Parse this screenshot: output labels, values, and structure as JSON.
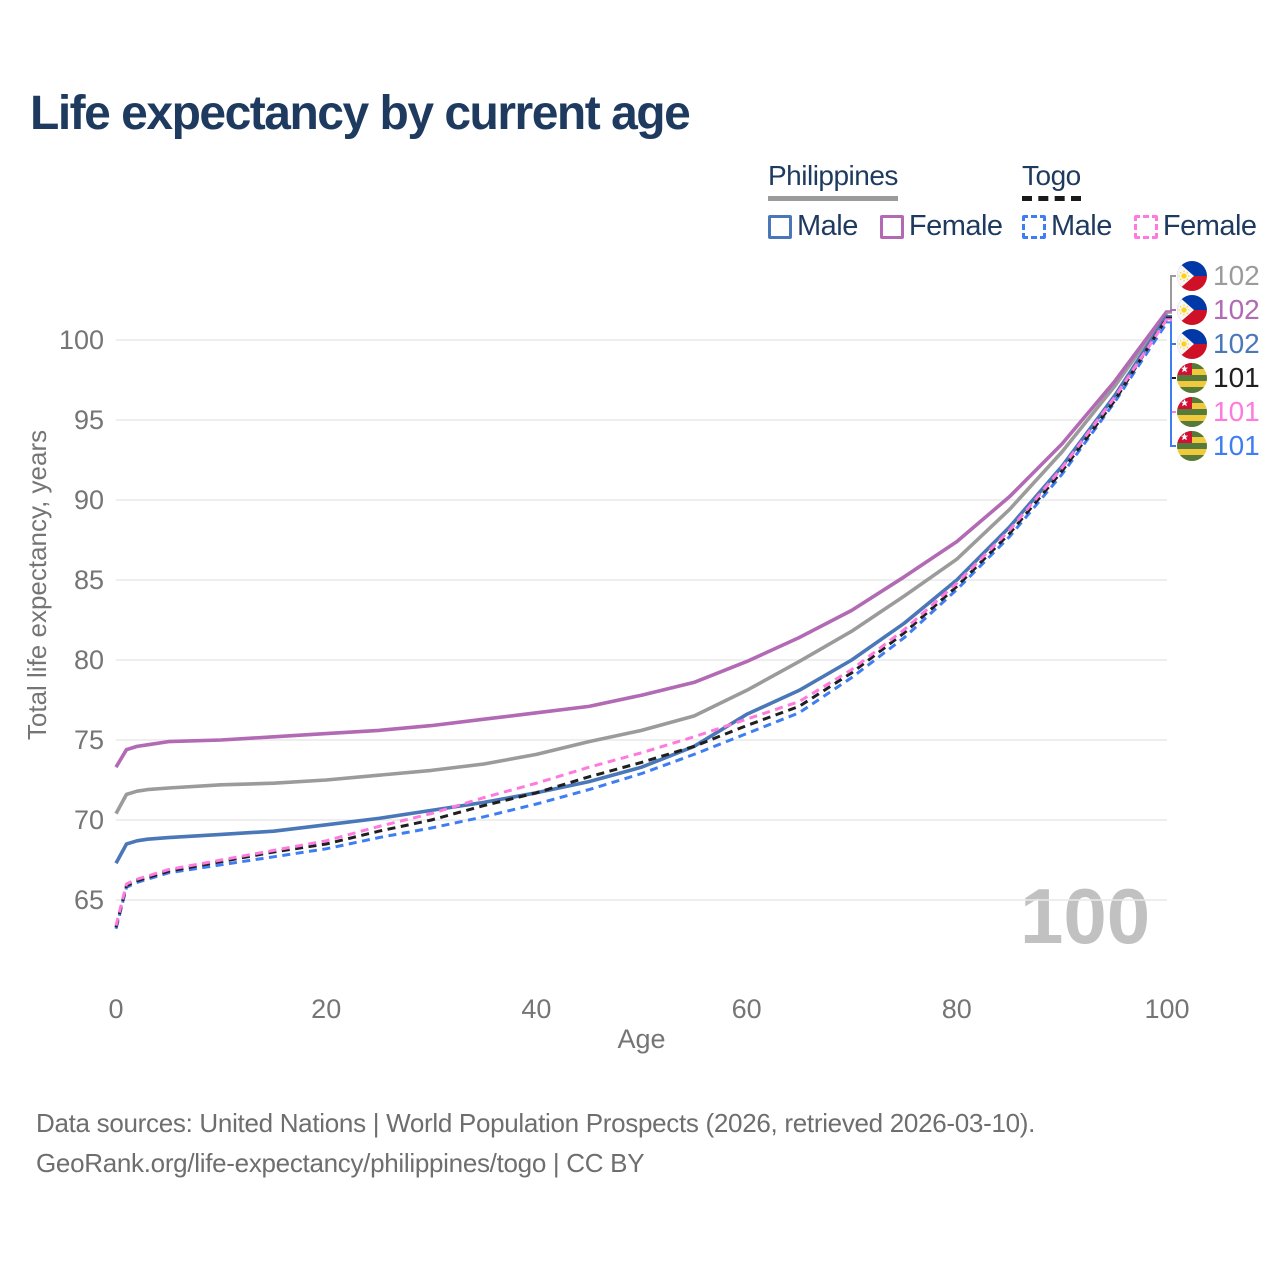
{
  "title": "Life expectancy by current age",
  "watermark": "100",
  "legend": {
    "groups": [
      {
        "label": "Philippines",
        "line_style": "solid",
        "items": [
          {
            "label": "Male"
          },
          {
            "label": "Female"
          }
        ]
      },
      {
        "label": "Togo",
        "line_style": "dashed",
        "items": [
          {
            "label": "Male"
          },
          {
            "label": "Female"
          }
        ]
      }
    ]
  },
  "chart_data": {
    "type": "line",
    "title": "Life expectancy by current age",
    "xlabel": "Age",
    "ylabel": "Total life expectancy, years",
    "xlim": [
      0,
      100
    ],
    "ylim": [
      63,
      102.5
    ],
    "xticks": [
      0,
      20,
      40,
      60,
      80,
      100
    ],
    "yticks": [
      65,
      70,
      75,
      80,
      85,
      90,
      95,
      100
    ],
    "grid": "horizontal",
    "legend_position": "top-right",
    "age_counter_watermark": "100",
    "x": [
      0,
      1,
      2,
      3,
      5,
      10,
      15,
      20,
      25,
      30,
      35,
      40,
      45,
      50,
      55,
      60,
      65,
      70,
      75,
      80,
      85,
      90,
      95,
      100
    ],
    "series": [
      {
        "name": "Philippines",
        "country": "Philippines",
        "sex": "both",
        "color": "#9b9b9b",
        "dash": "solid",
        "end_label": "102",
        "flag": "philippines-flag",
        "values": [
          70.4,
          71.6,
          71.8,
          71.9,
          72.0,
          72.2,
          72.3,
          72.5,
          72.8,
          73.1,
          73.5,
          74.1,
          74.9,
          75.6,
          76.5,
          78.1,
          79.9,
          81.8,
          84.0,
          86.3,
          89.4,
          93.0,
          97.1,
          101.7
        ]
      },
      {
        "name": "Philippines Female",
        "country": "Philippines",
        "sex": "female",
        "color": "#b16ab3",
        "dash": "solid",
        "end_label": "102",
        "flag": "philippines-flag",
        "values": [
          73.3,
          74.4,
          74.6,
          74.7,
          74.9,
          75.0,
          75.2,
          75.4,
          75.6,
          75.9,
          76.3,
          76.7,
          77.1,
          77.8,
          78.6,
          79.9,
          81.4,
          83.1,
          85.2,
          87.4,
          90.2,
          93.5,
          97.4,
          101.8
        ]
      },
      {
        "name": "Philippines Male",
        "country": "Philippines",
        "sex": "male",
        "color": "#4a77b8",
        "dash": "solid",
        "end_label": "102",
        "flag": "philippines-flag",
        "values": [
          67.3,
          68.5,
          68.7,
          68.8,
          68.9,
          69.1,
          69.3,
          69.7,
          70.1,
          70.6,
          71.1,
          71.7,
          72.4,
          73.3,
          74.6,
          76.6,
          78.1,
          80.0,
          82.3,
          85.0,
          88.3,
          92.1,
          96.5,
          101.5
        ]
      },
      {
        "name": "Togo",
        "country": "Togo",
        "sex": "both",
        "color": "#1f1f1f",
        "dash": "dashed",
        "end_label": "101",
        "flag": "togo-flag",
        "values": [
          63.3,
          65.9,
          66.2,
          66.4,
          66.8,
          67.4,
          68.0,
          68.5,
          69.3,
          70.0,
          70.9,
          71.7,
          72.7,
          73.6,
          74.6,
          75.9,
          77.1,
          79.2,
          81.7,
          84.6,
          87.9,
          91.8,
          96.2,
          101.4
        ]
      },
      {
        "name": "Togo Female",
        "country": "Togo",
        "sex": "female",
        "color": "#ff7ade",
        "dash": "dashed",
        "end_label": "101",
        "flag": "togo-flag",
        "values": [
          63.4,
          66.0,
          66.3,
          66.5,
          66.9,
          67.5,
          68.1,
          68.7,
          69.6,
          70.4,
          71.4,
          72.3,
          73.3,
          74.2,
          75.2,
          76.3,
          77.4,
          79.4,
          81.9,
          84.8,
          88.1,
          92.0,
          96.4,
          101.3
        ]
      },
      {
        "name": "Togo Male",
        "country": "Togo",
        "sex": "male",
        "color": "#3f7ef2",
        "dash": "dashed",
        "end_label": "101",
        "flag": "togo-flag",
        "values": [
          63.2,
          65.8,
          66.1,
          66.3,
          66.7,
          67.2,
          67.7,
          68.2,
          68.9,
          69.5,
          70.2,
          71.0,
          71.9,
          72.9,
          74.1,
          75.4,
          76.7,
          78.9,
          81.4,
          84.4,
          87.7,
          91.6,
          96.1,
          101.1
        ]
      }
    ]
  },
  "footer": {
    "line1": "Data sources: United Nations | World Population Prospects (2026, retrieved 2026-03-10).",
    "line2": "GeoRank.org/life-expectancy/philippines/togo | CC BY"
  }
}
